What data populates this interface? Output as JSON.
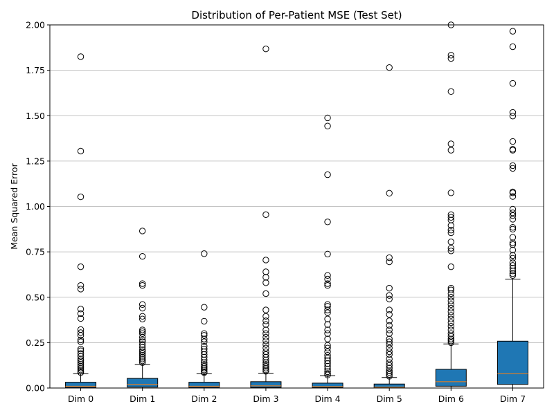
{
  "chart_data": {
    "type": "boxplot",
    "title": "Distribution of Per-Patient MSE (Test Set)",
    "xlabel": "",
    "ylabel": "Mean Squared Error",
    "ylim": [
      0,
      2.0
    ],
    "yticks": [
      "0.00",
      "0.25",
      "0.50",
      "0.75",
      "1.00",
      "1.25",
      "1.50",
      "1.75",
      "2.00"
    ],
    "grid": "y-major",
    "colors": {
      "box_fill": "#1f77b4",
      "median": "#ff7f0e",
      "grid": "#b0b0b0",
      "outlier_edge": "#000000"
    },
    "categories": [
      "Dim 0",
      "Dim 1",
      "Dim 2",
      "Dim 3",
      "Dim 4",
      "Dim 5",
      "Dim 6",
      "Dim 7"
    ],
    "boxes": [
      {
        "label": "Dim 0",
        "whisker_low": 0.0,
        "q1": 0.002,
        "median": 0.01,
        "q3": 0.032,
        "whisker_high": 0.078,
        "outliers": [
          1.825,
          1.305,
          1.053,
          0.668,
          0.565,
          0.545,
          0.435,
          0.41,
          0.383,
          0.322,
          0.305,
          0.29,
          0.265,
          0.255,
          0.215,
          0.205,
          0.19,
          0.175,
          0.16,
          0.15,
          0.14,
          0.13,
          0.12,
          0.11,
          0.1,
          0.092,
          0.085
        ]
      },
      {
        "label": "Dim 1",
        "whisker_low": 0.0,
        "q1": 0.005,
        "median": 0.02,
        "q3": 0.053,
        "whisker_high": 0.13,
        "outliers": [
          0.865,
          0.725,
          0.575,
          0.565,
          0.46,
          0.44,
          0.395,
          0.38,
          0.32,
          0.31,
          0.3,
          0.28,
          0.265,
          0.255,
          0.24,
          0.225,
          0.21,
          0.2,
          0.19,
          0.18,
          0.17,
          0.16,
          0.15,
          0.14
        ]
      },
      {
        "label": "Dim 2",
        "whisker_low": 0.0,
        "q1": 0.002,
        "median": 0.01,
        "q3": 0.032,
        "whisker_high": 0.078,
        "outliers": [
          0.74,
          0.445,
          0.368,
          0.3,
          0.29,
          0.27,
          0.255,
          0.23,
          0.215,
          0.2,
          0.185,
          0.17,
          0.155,
          0.14,
          0.13,
          0.12,
          0.11,
          0.1,
          0.09,
          0.085
        ]
      },
      {
        "label": "Dim 3",
        "whisker_low": 0.0,
        "q1": 0.003,
        "median": 0.012,
        "q3": 0.035,
        "whisker_high": 0.082,
        "outliers": [
          1.868,
          0.955,
          0.705,
          0.64,
          0.61,
          0.58,
          0.52,
          0.43,
          0.395,
          0.37,
          0.35,
          0.32,
          0.3,
          0.28,
          0.26,
          0.24,
          0.22,
          0.2,
          0.185,
          0.17,
          0.155,
          0.14,
          0.13,
          0.12,
          0.11,
          0.1,
          0.092
        ]
      },
      {
        "label": "Dim 4",
        "whisker_low": 0.0,
        "q1": 0.002,
        "median": 0.008,
        "q3": 0.027,
        "whisker_high": 0.068,
        "outliers": [
          1.488,
          1.443,
          1.175,
          0.915,
          0.738,
          0.62,
          0.6,
          0.575,
          0.565,
          0.46,
          0.45,
          0.43,
          0.415,
          0.38,
          0.35,
          0.32,
          0.3,
          0.27,
          0.235,
          0.22,
          0.2,
          0.18,
          0.165,
          0.15,
          0.135,
          0.12,
          0.105,
          0.09,
          0.08,
          0.072
        ]
      },
      {
        "label": "Dim 5",
        "whisker_low": 0.0,
        "q1": 0.001,
        "median": 0.005,
        "q3": 0.022,
        "whisker_high": 0.058,
        "outliers": [
          1.765,
          1.073,
          0.718,
          0.695,
          0.55,
          0.51,
          0.49,
          0.43,
          0.405,
          0.37,
          0.345,
          0.32,
          0.3,
          0.27,
          0.255,
          0.24,
          0.22,
          0.2,
          0.185,
          0.16,
          0.14,
          0.125,
          0.11,
          0.095,
          0.085,
          0.075,
          0.065
        ]
      },
      {
        "label": "Dim 6",
        "whisker_low": 0.0,
        "q1": 0.01,
        "median": 0.035,
        "q3": 0.103,
        "whisker_high": 0.243,
        "outliers": [
          2.0,
          1.833,
          1.815,
          1.633,
          1.345,
          1.31,
          1.075,
          0.955,
          0.94,
          0.925,
          0.895,
          0.87,
          0.855,
          0.805,
          0.77,
          0.755,
          0.668,
          0.55,
          0.54,
          0.52,
          0.5,
          0.48,
          0.46,
          0.44,
          0.42,
          0.4,
          0.38,
          0.36,
          0.34,
          0.32,
          0.3,
          0.285,
          0.27,
          0.26,
          0.25
        ]
      },
      {
        "label": "Dim 7",
        "whisker_low": 0.0,
        "q1": 0.02,
        "median": 0.078,
        "q3": 0.258,
        "whisker_high": 0.6,
        "outliers": [
          1.965,
          1.88,
          1.678,
          1.518,
          1.498,
          1.358,
          1.315,
          1.31,
          1.225,
          1.21,
          1.08,
          1.075,
          1.055,
          0.985,
          0.965,
          0.95,
          0.93,
          0.885,
          0.875,
          0.83,
          0.8,
          0.79,
          0.76,
          0.73,
          0.715,
          0.69,
          0.675,
          0.66,
          0.645,
          0.63,
          0.62
        ]
      }
    ]
  }
}
